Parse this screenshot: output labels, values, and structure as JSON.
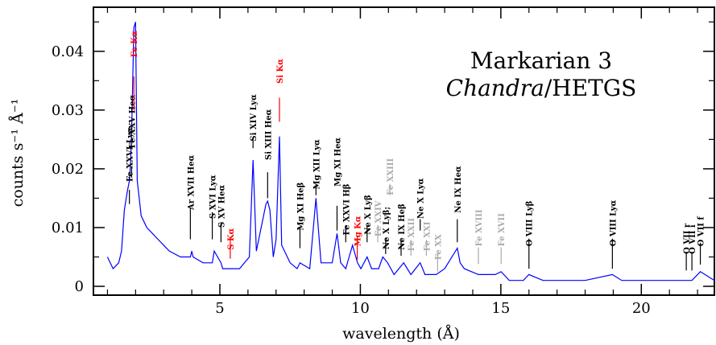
{
  "chart_data": {
    "type": "line",
    "title": [
      "Markarian 3",
      "Chandra/HETGS"
    ],
    "title_italic_part": "Chandra",
    "xlabel": "wavelength (Å)",
    "ylabel": "counts s⁻¹ Å⁻¹",
    "xlim": [
      0.5,
      22.6
    ],
    "ylim": [
      -0.0015,
      0.0475
    ],
    "x_ticks": [
      5,
      10,
      15,
      20
    ],
    "y_ticks": [
      0,
      0.01,
      0.02,
      0.03,
      0.04
    ],
    "y_tick_labels": [
      "0",
      "0.01",
      "0.02",
      "0.03",
      "0.04"
    ],
    "series": [
      {
        "color": "#0000ff",
        "x": [
          1.0,
          1.2,
          1.4,
          1.5,
          1.6,
          1.7,
          1.78,
          1.82,
          1.86,
          1.94,
          2.0,
          2.06,
          2.2,
          2.4,
          2.6,
          2.8,
          3.0,
          3.2,
          3.6,
          3.95,
          4.0,
          4.05,
          4.4,
          4.73,
          4.8,
          5.04,
          5.1,
          5.4,
          5.7,
          6.05,
          6.18,
          6.3,
          6.64,
          6.7,
          6.78,
          6.9,
          7.0,
          7.12,
          7.2,
          7.5,
          7.75,
          7.85,
          8.2,
          8.42,
          8.6,
          9.0,
          9.17,
          9.3,
          9.48,
          9.6,
          9.72,
          9.9,
          10.02,
          10.24,
          10.4,
          10.65,
          10.8,
          10.97,
          11.2,
          11.54,
          11.8,
          12.13,
          12.3,
          12.7,
          13.0,
          13.45,
          13.55,
          13.7,
          14.2,
          14.8,
          15.01,
          15.3,
          15.8,
          16.0,
          16.5,
          17.0,
          18.0,
          18.97,
          19.3,
          20.0,
          21.0,
          21.6,
          21.8,
          22.1,
          22.6
        ],
        "y": [
          0.005,
          0.003,
          0.004,
          0.006,
          0.013,
          0.016,
          0.018,
          0.021,
          0.026,
          0.044,
          0.045,
          0.018,
          0.012,
          0.01,
          0.009,
          0.008,
          0.007,
          0.006,
          0.005,
          0.005,
          0.006,
          0.005,
          0.004,
          0.004,
          0.006,
          0.004,
          0.003,
          0.003,
          0.003,
          0.005,
          0.0215,
          0.006,
          0.014,
          0.0145,
          0.013,
          0.005,
          0.008,
          0.0255,
          0.007,
          0.004,
          0.003,
          0.004,
          0.003,
          0.015,
          0.004,
          0.004,
          0.009,
          0.004,
          0.003,
          0.005,
          0.007,
          0.004,
          0.003,
          0.005,
          0.003,
          0.003,
          0.005,
          0.004,
          0.002,
          0.004,
          0.002,
          0.004,
          0.002,
          0.002,
          0.003,
          0.0065,
          0.004,
          0.003,
          0.002,
          0.002,
          0.0025,
          0.001,
          0.001,
          0.002,
          0.001,
          0.001,
          0.001,
          0.002,
          0.001,
          0.001,
          0.001,
          0.001,
          0.001,
          0.0025,
          0.001
        ]
      }
    ],
    "line_labels": [
      {
        "text": "Fe XXVI Lyα",
        "x": 1.78,
        "color": "#000000",
        "mark_bottom": 0.014,
        "mark_top": 0.0145,
        "label_bottom": 0.0178
      },
      {
        "text": "Fe XXV Heα",
        "x": 1.86,
        "color": "#000000",
        "mark_bottom": 0.0185,
        "mark_top": 0.0185,
        "label_bottom": 0.0235
      },
      {
        "text": "Fe Kα",
        "x": 1.94,
        "color": "#ff0000",
        "mark_bottom": 0.03,
        "mark_top": 0.0338,
        "label_bottom": 0.039
      },
      {
        "text": "Ar XVII Heα",
        "x": 3.95,
        "color": "#000000",
        "mark_bottom": 0.008,
        "mark_top": 0.0115,
        "label_bottom": 0.013
      },
      {
        "text": "S XVI Lyα",
        "x": 4.73,
        "color": "#000000",
        "mark_bottom": 0.008,
        "mark_top": 0.0107,
        "label_bottom": 0.0115
      },
      {
        "text": "S XV Heα",
        "x": 5.04,
        "color": "#000000",
        "mark_bottom": 0.0075,
        "mark_top": 0.009,
        "label_bottom": 0.01
      },
      {
        "text": "S Kα",
        "x": 5.37,
        "color": "#ff0000",
        "mark_bottom": 0.0047,
        "mark_top": 0.006,
        "label_bottom": 0.0062
      },
      {
        "text": "Si XIV Lyα",
        "x": 6.18,
        "color": "#000000",
        "mark_bottom": 0.0235,
        "mark_top": 0.0235,
        "label_bottom": 0.0247
      },
      {
        "text": "Si XIII Heα",
        "x": 6.7,
        "color": "#000000",
        "mark_bottom": 0.015,
        "mark_top": 0.0175,
        "label_bottom": 0.0215
      },
      {
        "text": "Si Kα",
        "x": 7.12,
        "color": "#ff0000",
        "mark_bottom": 0.028,
        "mark_top": 0.0302,
        "label_bottom": 0.0345
      },
      {
        "text": "Mg XI Heβ",
        "x": 7.85,
        "color": "#000000",
        "mark_bottom": 0.0065,
        "mark_top": 0.0082,
        "label_bottom": 0.0095
      },
      {
        "text": "Mg XII Lyα",
        "x": 8.42,
        "color": "#000000",
        "mark_bottom": 0.0155,
        "mark_top": 0.0155,
        "label_bottom": 0.0165
      },
      {
        "text": "Mg XI Heα",
        "x": 9.17,
        "color": "#000000",
        "mark_bottom": 0.0095,
        "mark_top": 0.0118,
        "label_bottom": 0.017
      },
      {
        "text": "Fe XXVI Hβ",
        "x": 9.48,
        "color": "#000000",
        "mark_bottom": 0.0075,
        "mark_top": 0.0085,
        "label_bottom": 0.0087
      },
      {
        "text": "Mg Kα",
        "x": 9.89,
        "color": "#ff0000",
        "mark_bottom": 0.0045,
        "mark_top": 0.0065,
        "label_bottom": 0.0068
      },
      {
        "text": "Ne X Lyβ",
        "x": 10.24,
        "color": "#000000",
        "mark_bottom": 0.0075,
        "mark_top": 0.0085,
        "label_bottom": 0.0088
      },
      {
        "text": "Fe XXIV",
        "x": 10.62,
        "color": "#aaaaaa",
        "mark_bottom": 0.0075,
        "mark_top": 0.0085,
        "label_bottom": 0.0085
      },
      {
        "text": "Ne X Lyβ;",
        "x": 10.9,
        "color": "#000000",
        "mark_bottom": 0.0055,
        "mark_top": 0.0062,
        "label_bottom": 0.0063
      },
      {
        "text": "Fe XXIII",
        "x": 11.05,
        "color": "#aaaaaa",
        "mark_bottom": 0.0155,
        "mark_top": 0.0155,
        "label_bottom": 0.0155
      },
      {
        "text": "Ne IX Heβ",
        "x": 11.45,
        "color": "#000000",
        "mark_bottom": 0.0052,
        "mark_top": 0.006,
        "label_bottom": 0.0062
      },
      {
        "text": "Fe XXII",
        "x": 11.8,
        "color": "#aaaaaa",
        "mark_bottom": 0.0052,
        "mark_top": 0.006,
        "label_bottom": 0.006
      },
      {
        "text": "Ne X Lyα",
        "x": 12.13,
        "color": "#000000",
        "mark_bottom": 0.0095,
        "mark_top": 0.0095,
        "label_bottom": 0.0115
      },
      {
        "text": "Fe XXI",
        "x": 12.35,
        "color": "#aaaaaa",
        "mark_bottom": 0.0052,
        "mark_top": 0.006,
        "label_bottom": 0.006
      },
      {
        "text": "Fe XX",
        "x": 12.75,
        "color": "#aaaaaa",
        "mark_bottom": 0.0025,
        "mark_top": 0.0038,
        "label_bottom": 0.0045
      },
      {
        "text": "Ne IX Heα",
        "x": 13.45,
        "color": "#000000",
        "mark_bottom": 0.0075,
        "mark_top": 0.0095,
        "label_bottom": 0.0125
      },
      {
        "text": "Fe XVIII",
        "x": 14.2,
        "color": "#aaaaaa",
        "mark_bottom": 0.0038,
        "mark_top": 0.0047,
        "label_bottom": 0.0068
      },
      {
        "text": "Fe XVII",
        "x": 15.01,
        "color": "#aaaaaa",
        "mark_bottom": 0.0038,
        "mark_top": 0.0047,
        "label_bottom": 0.0068
      },
      {
        "text": "O VIII Lyβ",
        "x": 16.0,
        "color": "#000000",
        "mark_bottom": 0.003,
        "mark_top": 0.0062,
        "label_bottom": 0.0068
      },
      {
        "text": "O VIII Lyα",
        "x": 18.97,
        "color": "#000000",
        "mark_bottom": 0.003,
        "mark_top": 0.0062,
        "label_bottom": 0.0068
      },
      {
        "text": "O VII r",
        "x": 21.6,
        "color": "#000000",
        "mark_bottom": 0.0027,
        "mark_top": 0.0037,
        "label_bottom": 0.0055
      },
      {
        "text": "O VII i",
        "x": 21.8,
        "color": "#000000",
        "mark_bottom": 0.0027,
        "mark_top": 0.0037,
        "label_bottom": 0.0055
      },
      {
        "text": "O VII f",
        "x": 22.1,
        "color": "#000000",
        "mark_bottom": 0.0037,
        "mark_top": 0.0055,
        "label_bottom": 0.0068
      }
    ],
    "grid": false,
    "legend": "none"
  }
}
